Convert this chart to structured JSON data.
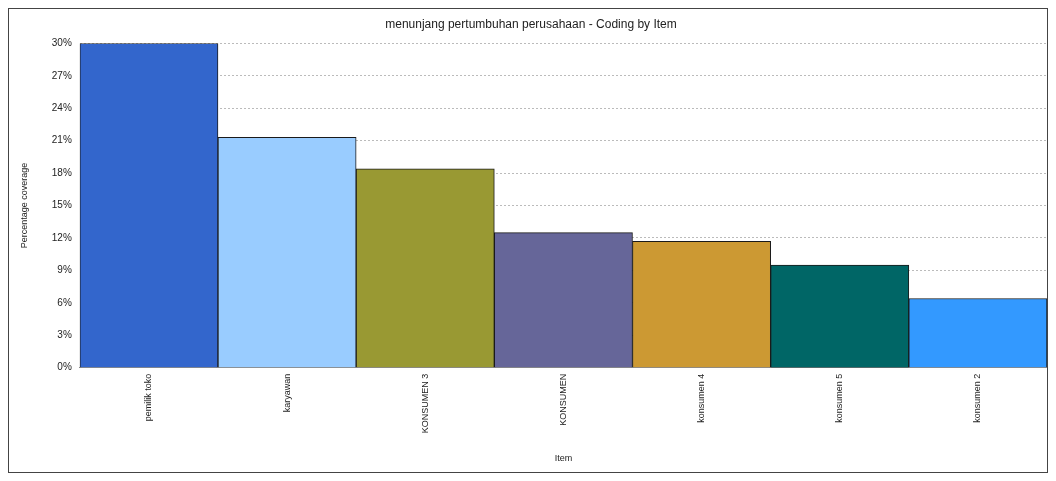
{
  "chart_data": {
    "type": "bar",
    "title": "menunjang pertumbuhan perusahaan - Coding by Item",
    "xlabel": "Item",
    "ylabel": "Percentage coverage",
    "categories": [
      "pemilik toko",
      "karyawan",
      "KONSUMEN 3",
      "KONSUMEN",
      "konsumen 4",
      "konsumen 5",
      "konsumen 2"
    ],
    "values": [
      30,
      21.3,
      18.4,
      12.5,
      11.7,
      9.5,
      6.4
    ],
    "colors": [
      "#3366cc",
      "#99ccff",
      "#999933",
      "#666699",
      "#cc9933",
      "#006666",
      "#3399ff"
    ],
    "ylim": [
      0,
      30
    ],
    "yticks": [
      {
        "value": 0,
        "label": "0%"
      },
      {
        "value": 3,
        "label": "3%"
      },
      {
        "value": 6,
        "label": "6%"
      },
      {
        "value": 9,
        "label": "9%"
      },
      {
        "value": 12,
        "label": "12%"
      },
      {
        "value": 15,
        "label": "15%"
      },
      {
        "value": 18,
        "label": "18%"
      },
      {
        "value": 21,
        "label": "21%"
      },
      {
        "value": 24,
        "label": "24%"
      },
      {
        "value": 27,
        "label": "27%"
      },
      {
        "value": 30,
        "label": "30%"
      }
    ],
    "grid": "y",
    "legend": false
  }
}
